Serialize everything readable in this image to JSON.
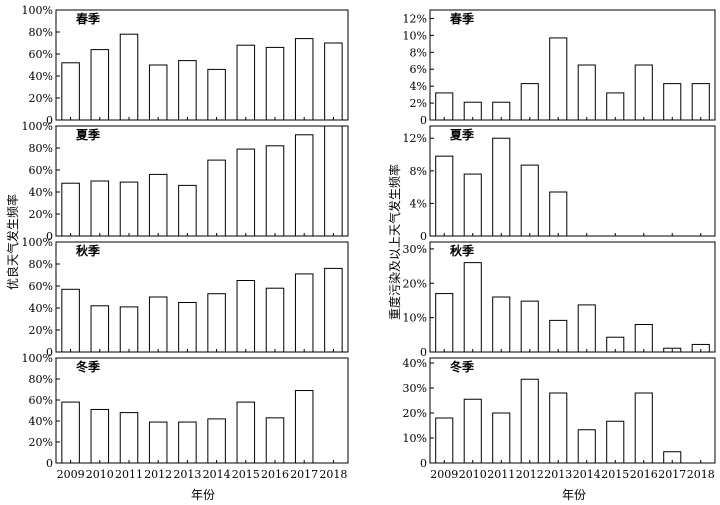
{
  "years": [
    "2009",
    "2010",
    "2011",
    "2012",
    "2013",
    "2014",
    "2015",
    "2016",
    "2017",
    "2018"
  ],
  "xlabel": "年份",
  "left_ylabel": "优良天气发生频率",
  "right_ylabel": "重度污染及以上天气发生频率",
  "chart_data": [
    {
      "type": "bar",
      "column": "left",
      "title": "春季",
      "categories": [
        "2009",
        "2010",
        "2011",
        "2012",
        "2013",
        "2014",
        "2015",
        "2016",
        "2017",
        "2018"
      ],
      "values": [
        52,
        64,
        78,
        50,
        54,
        46,
        68,
        66,
        74,
        70
      ],
      "ylim": [
        0,
        100
      ],
      "yticks": [
        0,
        20,
        40,
        60,
        80,
        100
      ],
      "ytick_labels": [
        "0",
        "20%",
        "40%",
        "60%",
        "80%",
        "100%"
      ]
    },
    {
      "type": "bar",
      "column": "left",
      "title": "夏季",
      "categories": [
        "2009",
        "2010",
        "2011",
        "2012",
        "2013",
        "2014",
        "2015",
        "2016",
        "2017",
        "2018"
      ],
      "values": [
        48,
        50,
        49,
        56,
        46,
        69,
        79,
        82,
        92,
        100
      ],
      "ylim": [
        0,
        100
      ],
      "yticks": [
        0,
        20,
        40,
        60,
        80,
        100
      ],
      "ytick_labels": [
        "0",
        "20%",
        "40%",
        "60%",
        "80%",
        "100%"
      ]
    },
    {
      "type": "bar",
      "column": "left",
      "title": "秋季",
      "categories": [
        "2009",
        "2010",
        "2011",
        "2012",
        "2013",
        "2014",
        "2015",
        "2016",
        "2017",
        "2018"
      ],
      "values": [
        57,
        42,
        41,
        50,
        45,
        53,
        65,
        58,
        71,
        76
      ],
      "ylim": [
        0,
        100
      ],
      "yticks": [
        0,
        20,
        40,
        60,
        80,
        100
      ],
      "ytick_labels": [
        "0",
        "20%",
        "40%",
        "60%",
        "80%",
        "100%"
      ]
    },
    {
      "type": "bar",
      "column": "left",
      "title": "冬季",
      "categories": [
        "2009",
        "2010",
        "2011",
        "2012",
        "2013",
        "2014",
        "2015",
        "2016",
        "2017",
        "2018"
      ],
      "values": [
        58,
        51,
        48,
        39,
        39,
        42,
        58,
        43,
        69,
        0
      ],
      "ylim": [
        0,
        100
      ],
      "yticks": [
        0,
        20,
        40,
        60,
        80,
        100
      ],
      "ytick_labels": [
        "0",
        "20%",
        "40%",
        "60%",
        "80%",
        "100%"
      ]
    },
    {
      "type": "bar",
      "column": "right",
      "title": "春季",
      "categories": [
        "2009",
        "2010",
        "2011",
        "2012",
        "2013",
        "2014",
        "2015",
        "2016",
        "2017",
        "2018"
      ],
      "values": [
        3.2,
        2.1,
        2.1,
        4.3,
        9.7,
        6.5,
        3.2,
        6.5,
        4.3,
        4.3
      ],
      "ylim": [
        0,
        13
      ],
      "yticks": [
        0,
        2,
        4,
        6,
        8,
        10,
        12
      ],
      "ytick_labels": [
        "0",
        "2%",
        "4%",
        "6%",
        "8%",
        "10%",
        "12%"
      ]
    },
    {
      "type": "bar",
      "column": "right",
      "title": "夏季",
      "categories": [
        "2009",
        "2010",
        "2011",
        "2012",
        "2013",
        "2014",
        "2015",
        "2016",
        "2017",
        "2018"
      ],
      "values": [
        9.8,
        7.6,
        12.0,
        8.7,
        5.4,
        0,
        0,
        0,
        0,
        0
      ],
      "ylim": [
        0,
        13.5
      ],
      "yticks": [
        0,
        4,
        8,
        12
      ],
      "ytick_labels": [
        "0",
        "4%",
        "8%",
        "12%"
      ]
    },
    {
      "type": "bar",
      "column": "right",
      "title": "秋季",
      "categories": [
        "2009",
        "2010",
        "2011",
        "2012",
        "2013",
        "2014",
        "2015",
        "2016",
        "2017",
        "2018"
      ],
      "values": [
        17,
        26,
        16,
        14.8,
        9.2,
        13.7,
        4.3,
        8,
        1.1,
        2.2
      ],
      "ylim": [
        0,
        32
      ],
      "yticks": [
        0,
        10,
        20,
        30
      ],
      "ytick_labels": [
        "0",
        "10%",
        "20%",
        "30%"
      ]
    },
    {
      "type": "bar",
      "column": "right",
      "title": "冬季",
      "categories": [
        "2009",
        "2010",
        "2011",
        "2012",
        "2013",
        "2014",
        "2015",
        "2016",
        "2017",
        "2018"
      ],
      "values": [
        18,
        25.5,
        20,
        33.5,
        28,
        13.3,
        16.7,
        28,
        4.5,
        0
      ],
      "ylim": [
        0,
        42
      ],
      "yticks": [
        0,
        10,
        20,
        30,
        40
      ],
      "ytick_labels": [
        "0",
        "10%",
        "20%",
        "30%",
        "40%"
      ]
    }
  ]
}
